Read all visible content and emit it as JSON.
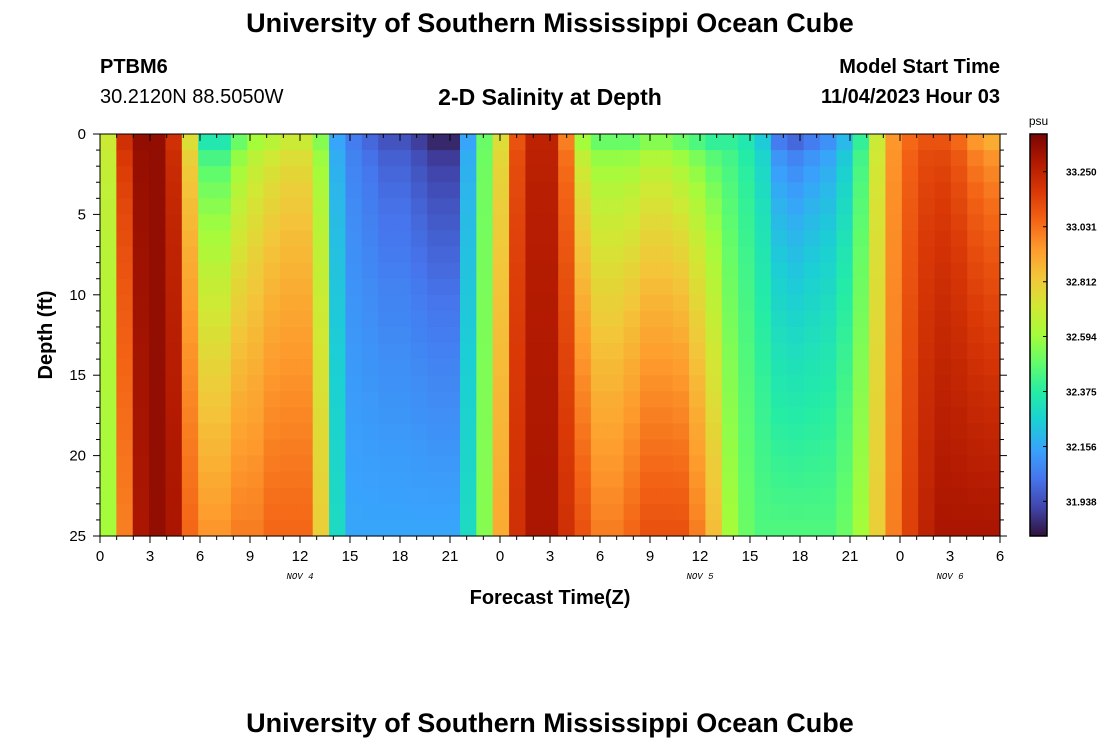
{
  "header": {
    "title": "University of Southern Mississippi Ocean Cube",
    "station": "PTBM6",
    "coords": "30.2120N  88.5050W",
    "subtitle": "2-D Salinity at Depth",
    "model_label": "Model Start Time",
    "model_time": "11/04/2023 Hour 03"
  },
  "footer": {
    "title": "University of Southern Mississippi Ocean Cube"
  },
  "colors": {
    "scale": [
      "#30123b",
      "#4145ab",
      "#4675ed",
      "#39a2fc",
      "#1bcfd4",
      "#24eca6",
      "#61fc6c",
      "#a4fc3b",
      "#d1e834",
      "#f3c63a",
      "#fe9b2d",
      "#f36315",
      "#d93806",
      "#b11901",
      "#7a0402"
    ]
  },
  "chart_data": {
    "type": "heatmap",
    "title": "2-D Salinity at Depth",
    "xlabel": "Forecast Time(Z)",
    "ylabel": "Depth (ft)",
    "x_range": [
      0,
      54
    ],
    "y_range": [
      0,
      25
    ],
    "x_tick_labels": [
      "0",
      "3",
      "6",
      "9",
      "12",
      "15",
      "18",
      "21",
      "0",
      "3",
      "6",
      "9",
      "12",
      "15",
      "18",
      "21",
      "0",
      "3",
      "6"
    ],
    "y_tick_labels": [
      "0",
      "5",
      "10",
      "15",
      "20",
      "25"
    ],
    "date_labels": [
      {
        "label": "NOV 4",
        "hour": 12
      },
      {
        "label": "NOV 5",
        "hour": 36
      },
      {
        "label": "NOV 6",
        "hour": 51
      }
    ],
    "colorbar": {
      "unit": "psu",
      "range": [
        31.8,
        33.4
      ],
      "ticks": [
        "33.250",
        "33.031",
        "32.812",
        "32.594",
        "32.375",
        "32.156",
        "31.938"
      ]
    },
    "surface_salinity_by_hour": [
      32.7,
      33.2,
      33.35,
      33.35,
      33.2,
      32.75,
      32.35,
      32.35,
      32.5,
      32.6,
      32.65,
      32.7,
      32.7,
      32.55,
      32.15,
      32.05,
      32.0,
      31.95,
      31.95,
      31.9,
      31.85,
      31.85,
      32.15,
      32.5,
      32.75,
      33.1,
      33.25,
      33.25,
      33.0,
      32.6,
      32.5,
      32.5,
      32.5,
      32.55,
      32.55,
      32.5,
      32.45,
      32.4,
      32.4,
      32.35,
      32.25,
      32.05,
      32.0,
      32.05,
      32.1,
      32.2,
      32.4,
      32.7,
      32.95,
      33.05,
      33.1,
      33.1,
      33.05,
      32.95,
      32.9
    ],
    "bottom_salinity_by_hour": [
      32.6,
      33.0,
      33.3,
      33.35,
      33.3,
      33.05,
      32.95,
      32.95,
      33.0,
      33.0,
      33.05,
      33.05,
      33.05,
      32.8,
      32.3,
      32.15,
      32.15,
      32.15,
      32.15,
      32.15,
      32.15,
      32.15,
      32.3,
      32.55,
      32.9,
      33.2,
      33.3,
      33.3,
      33.2,
      33.1,
      33.0,
      33.0,
      33.05,
      33.1,
      33.1,
      33.1,
      33.0,
      32.85,
      32.6,
      32.5,
      32.45,
      32.45,
      32.45,
      32.45,
      32.45,
      32.5,
      32.6,
      32.8,
      33.0,
      33.15,
      33.25,
      33.3,
      33.3,
      33.3,
      33.3
    ]
  }
}
